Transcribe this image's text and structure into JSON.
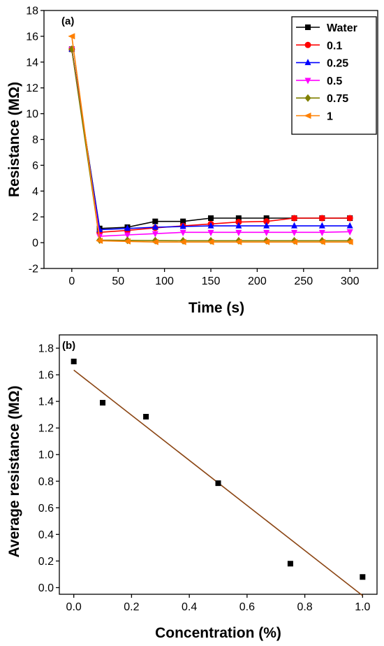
{
  "chart_data": [
    {
      "type": "line",
      "panel_label": "(a)",
      "xlabel": "Time (s)",
      "ylabel": "Resistance (MΩ)",
      "xlim": [
        -30,
        330
      ],
      "ylim": [
        -2,
        18
      ],
      "xticks": [
        0,
        50,
        100,
        150,
        200,
        250,
        300
      ],
      "yticks": [
        -2,
        0,
        2,
        4,
        6,
        8,
        10,
        12,
        14,
        16,
        18
      ],
      "legend_position": "top-right",
      "x": [
        0,
        30,
        60,
        90,
        120,
        150,
        180,
        210,
        240,
        270,
        300
      ],
      "series": [
        {
          "name": "Water",
          "color": "#000000",
          "marker": "square",
          "values": [
            15.0,
            1.1,
            1.2,
            1.65,
            1.65,
            1.9,
            1.9,
            1.9,
            1.9,
            1.9,
            1.9
          ]
        },
        {
          "name": "0.1",
          "color": "#ff0000",
          "marker": "circle",
          "values": [
            15.0,
            0.8,
            0.95,
            1.15,
            1.3,
            1.45,
            1.6,
            1.65,
            1.9,
            1.9,
            1.9
          ]
        },
        {
          "name": "0.25",
          "color": "#0000ff",
          "marker": "triangle-up",
          "values": [
            15.0,
            1.0,
            1.1,
            1.2,
            1.25,
            1.3,
            1.3,
            1.3,
            1.3,
            1.3,
            1.3
          ]
        },
        {
          "name": "0.5",
          "color": "#ff00ff",
          "marker": "triangle-down",
          "values": [
            15.0,
            0.5,
            0.6,
            0.7,
            0.8,
            0.8,
            0.8,
            0.8,
            0.8,
            0.8,
            0.85
          ]
        },
        {
          "name": "0.75",
          "color": "#808000",
          "marker": "diamond",
          "values": [
            15.0,
            0.2,
            0.18,
            0.16,
            0.15,
            0.15,
            0.15,
            0.15,
            0.15,
            0.15,
            0.15
          ]
        },
        {
          "name": "1",
          "color": "#ff8000",
          "marker": "triangle-left",
          "values": [
            16.0,
            0.15,
            0.1,
            0.05,
            0.05,
            0.05,
            0.05,
            0.05,
            0.05,
            0.05,
            0.05
          ]
        }
      ]
    },
    {
      "type": "scatter",
      "panel_label": "(b)",
      "xlabel": "Concentration (%)",
      "ylabel": "Average resistance (MΩ)",
      "xlim": [
        -0.05,
        1.05
      ],
      "ylim": [
        -0.05,
        1.9
      ],
      "xticks": [
        0.0,
        0.2,
        0.4,
        0.6,
        0.8,
        1.0
      ],
      "yticks": [
        0.0,
        0.2,
        0.4,
        0.6,
        0.8,
        1.0,
        1.2,
        1.4,
        1.6,
        1.8
      ],
      "points": {
        "color": "#000000",
        "marker": "square",
        "x": [
          0,
          0.1,
          0.25,
          0.5,
          0.75,
          1.0
        ],
        "y": [
          1.7,
          1.39,
          1.285,
          0.785,
          0.18,
          0.08
        ]
      },
      "fit_line": {
        "color": "#8b4513",
        "x": [
          0,
          1.0
        ],
        "y": [
          1.635,
          -0.06
        ]
      }
    }
  ]
}
